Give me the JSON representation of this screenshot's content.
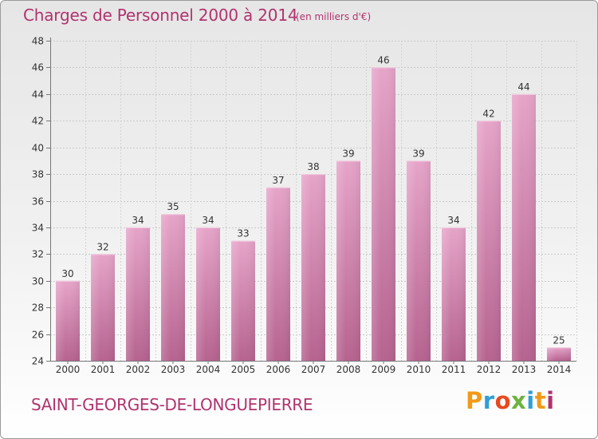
{
  "header": {
    "title": "Charges de Personnel 2000 à 2014",
    "subtitle": "(en milliers d'€)"
  },
  "footer": {
    "commune": "SAINT-GEORGES-DE-LONGUEPIERRE",
    "logo": "Proxiti"
  },
  "colors": {
    "accent": "#b0336e",
    "bar_top": "#e6a4c9",
    "bar_bottom": "#b6638f"
  },
  "chart_data": {
    "type": "bar",
    "categories": [
      "2000",
      "2001",
      "2002",
      "2003",
      "2004",
      "2005",
      "2006",
      "2007",
      "2008",
      "2009",
      "2010",
      "2011",
      "2012",
      "2013",
      "2014"
    ],
    "values": [
      30,
      32,
      34,
      35,
      34,
      33,
      37,
      38,
      39,
      46,
      39,
      34,
      42,
      44,
      25
    ],
    "ylim": [
      24,
      48
    ],
    "yticks": [
      24,
      26,
      28,
      30,
      32,
      34,
      36,
      38,
      40,
      42,
      44,
      46,
      48
    ],
    "grid": true
  }
}
